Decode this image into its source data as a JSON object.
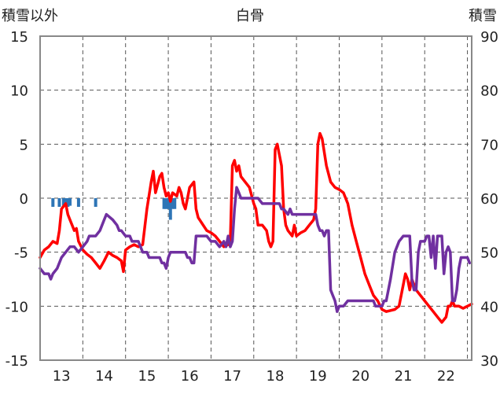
{
  "chart_data": {
    "type": "line",
    "title": "白骨",
    "ylabel_left": "積雪以外",
    "ylabel_right": "積雪",
    "x_ticks": [
      "13",
      "14",
      "15",
      "16",
      "17",
      "18",
      "19",
      "20",
      "21",
      "22"
    ],
    "x_range": [
      12.5,
      22.6
    ],
    "ylim_left": [
      -15,
      15
    ],
    "ylim_right": [
      30,
      90
    ],
    "yticks_left": [
      "15",
      "10",
      "5",
      "0",
      "-5",
      "-10",
      "-15"
    ],
    "yticks_right": [
      "90",
      "80",
      "70",
      "60",
      "50",
      "40",
      "30"
    ],
    "grid": "dashed-vertical",
    "colors": {
      "red": "#ff0000",
      "purple": "#7030a0",
      "blue": "#2e75b6"
    },
    "series": [
      {
        "name": "",
        "axis": "left",
        "color": "#ff0000",
        "points": [
          [
            12.5,
            -5.5
          ],
          [
            12.6,
            -4.8
          ],
          [
            12.7,
            -4.5
          ],
          [
            12.8,
            -4.0
          ],
          [
            12.9,
            -4.2
          ],
          [
            12.95,
            -3.0
          ],
          [
            13.0,
            -1.0
          ],
          [
            13.1,
            -0.5
          ],
          [
            13.15,
            -1.5
          ],
          [
            13.2,
            -2.0
          ],
          [
            13.3,
            -3.0
          ],
          [
            13.35,
            -2.8
          ],
          [
            13.4,
            -4.0
          ],
          [
            13.5,
            -4.8
          ],
          [
            13.6,
            -5.2
          ],
          [
            13.7,
            -5.5
          ],
          [
            13.8,
            -6.0
          ],
          [
            13.9,
            -6.5
          ],
          [
            14.0,
            -5.8
          ],
          [
            14.1,
            -5.0
          ],
          [
            14.2,
            -5.3
          ],
          [
            14.3,
            -5.5
          ],
          [
            14.4,
            -5.8
          ],
          [
            14.45,
            -6.8
          ],
          [
            14.5,
            -4.8
          ],
          [
            14.6,
            -4.5
          ],
          [
            14.7,
            -4.3
          ],
          [
            14.8,
            -4.5
          ],
          [
            14.9,
            -4.3
          ],
          [
            15.0,
            -1.0
          ],
          [
            15.1,
            1.5
          ],
          [
            15.15,
            2.5
          ],
          [
            15.2,
            0.5
          ],
          [
            15.3,
            2.0
          ],
          [
            15.35,
            2.3
          ],
          [
            15.4,
            1.0
          ],
          [
            15.45,
            0.2
          ],
          [
            15.5,
            0.5
          ],
          [
            15.55,
            -0.3
          ],
          [
            15.6,
            0.5
          ],
          [
            15.7,
            0.2
          ],
          [
            15.75,
            1.0
          ],
          [
            15.8,
            0.5
          ],
          [
            15.85,
            -0.5
          ],
          [
            15.9,
            -1.0
          ],
          [
            16.0,
            1.0
          ],
          [
            16.1,
            1.5
          ],
          [
            16.15,
            -1.0
          ],
          [
            16.2,
            -1.8
          ],
          [
            16.4,
            -3.0
          ],
          [
            16.5,
            -3.2
          ],
          [
            16.6,
            -3.5
          ],
          [
            16.7,
            -4.0
          ],
          [
            16.8,
            -4.5
          ],
          [
            16.9,
            -4.3
          ],
          [
            16.95,
            -4.0
          ],
          [
            17.0,
            3.0
          ],
          [
            17.05,
            3.5
          ],
          [
            17.1,
            2.5
          ],
          [
            17.15,
            3.0
          ],
          [
            17.2,
            2.0
          ],
          [
            17.3,
            1.5
          ],
          [
            17.4,
            1.0
          ],
          [
            17.5,
            -0.5
          ],
          [
            17.55,
            -1.0
          ],
          [
            17.6,
            -2.5
          ],
          [
            17.7,
            -2.5
          ],
          [
            17.8,
            -3.0
          ],
          [
            17.85,
            -4.0
          ],
          [
            17.9,
            -4.5
          ],
          [
            17.95,
            -4.0
          ],
          [
            18.0,
            4.5
          ],
          [
            18.05,
            5.0
          ],
          [
            18.1,
            4.0
          ],
          [
            18.15,
            3.0
          ],
          [
            18.2,
            -1.0
          ],
          [
            18.25,
            -2.5
          ],
          [
            18.3,
            -3.0
          ],
          [
            18.4,
            -3.5
          ],
          [
            18.45,
            -2.5
          ],
          [
            18.5,
            -3.5
          ],
          [
            18.6,
            -3.2
          ],
          [
            18.7,
            -3.0
          ],
          [
            18.8,
            -2.5
          ],
          [
            18.9,
            -2.0
          ],
          [
            18.95,
            -1.0
          ],
          [
            19.0,
            5.0
          ],
          [
            19.05,
            6.0
          ],
          [
            19.1,
            5.5
          ],
          [
            19.2,
            3.0
          ],
          [
            19.3,
            1.5
          ],
          [
            19.4,
            1.0
          ],
          [
            19.5,
            0.8
          ],
          [
            19.6,
            0.5
          ],
          [
            19.7,
            -0.5
          ],
          [
            19.8,
            -2.5
          ],
          [
            19.9,
            -4.0
          ],
          [
            20.0,
            -5.5
          ],
          [
            20.1,
            -7.0
          ],
          [
            20.2,
            -8.0
          ],
          [
            20.3,
            -9.0
          ],
          [
            20.4,
            -9.5
          ],
          [
            20.5,
            -10.3
          ],
          [
            20.6,
            -10.5
          ],
          [
            20.8,
            -10.3
          ],
          [
            20.9,
            -10.0
          ],
          [
            21.0,
            -8.0
          ],
          [
            21.05,
            -7.0
          ],
          [
            21.1,
            -7.5
          ],
          [
            21.15,
            -8.5
          ],
          [
            21.2,
            -7.5
          ],
          [
            21.3,
            -8.5
          ],
          [
            21.5,
            -9.5
          ],
          [
            21.6,
            -10.0
          ],
          [
            21.7,
            -10.5
          ],
          [
            21.8,
            -11.0
          ],
          [
            21.9,
            -11.5
          ],
          [
            22.0,
            -11.0
          ],
          [
            22.05,
            -10.0
          ],
          [
            22.1,
            -10.0
          ],
          [
            22.15,
            -9.5
          ],
          [
            22.2,
            -10.0
          ],
          [
            22.3,
            -10.0
          ],
          [
            22.4,
            -10.2
          ],
          [
            22.5,
            -10.0
          ],
          [
            22.6,
            -9.8
          ]
        ]
      },
      {
        "name": "",
        "axis": "left",
        "color": "#7030a0",
        "points": [
          [
            12.5,
            -6.5
          ],
          [
            12.6,
            -7.0
          ],
          [
            12.7,
            -7.0
          ],
          [
            12.75,
            -7.5
          ],
          [
            12.8,
            -7.0
          ],
          [
            12.9,
            -6.5
          ],
          [
            13.0,
            -5.5
          ],
          [
            13.1,
            -5.0
          ],
          [
            13.2,
            -4.5
          ],
          [
            13.3,
            -4.5
          ],
          [
            13.4,
            -5.0
          ],
          [
            13.5,
            -4.5
          ],
          [
            13.6,
            -4.0
          ],
          [
            13.65,
            -3.5
          ],
          [
            13.8,
            -3.5
          ],
          [
            13.9,
            -3.0
          ],
          [
            14.0,
            -2.0
          ],
          [
            14.05,
            -1.5
          ],
          [
            14.2,
            -2.0
          ],
          [
            14.3,
            -2.5
          ],
          [
            14.35,
            -3.0
          ],
          [
            14.4,
            -3.0
          ],
          [
            14.5,
            -3.5
          ],
          [
            14.6,
            -3.5
          ],
          [
            14.65,
            -4.0
          ],
          [
            14.8,
            -4.0
          ],
          [
            14.9,
            -5.0
          ],
          [
            15.0,
            -5.0
          ],
          [
            15.05,
            -5.5
          ],
          [
            15.2,
            -5.5
          ],
          [
            15.3,
            -5.5
          ],
          [
            15.35,
            -6.0
          ],
          [
            15.4,
            -6.0
          ],
          [
            15.45,
            -6.5
          ],
          [
            15.5,
            -5.5
          ],
          [
            15.55,
            -5.0
          ],
          [
            15.9,
            -5.0
          ],
          [
            15.95,
            -5.5
          ],
          [
            16.0,
            -5.5
          ],
          [
            16.05,
            -6.0
          ],
          [
            16.1,
            -6.0
          ],
          [
            16.15,
            -3.5
          ],
          [
            16.2,
            -3.5
          ],
          [
            16.4,
            -3.5
          ],
          [
            16.5,
            -4.0
          ],
          [
            16.6,
            -4.0
          ],
          [
            16.7,
            -4.5
          ],
          [
            16.8,
            -4.0
          ],
          [
            16.85,
            -4.5
          ],
          [
            16.9,
            -3.5
          ],
          [
            16.95,
            -4.5
          ],
          [
            17.0,
            -4.0
          ],
          [
            17.05,
            -1.0
          ],
          [
            17.1,
            1.0
          ],
          [
            17.15,
            0.5
          ],
          [
            17.2,
            0.0
          ],
          [
            17.5,
            0.0
          ],
          [
            17.6,
            0.0
          ],
          [
            17.7,
            -0.5
          ],
          [
            18.0,
            -0.5
          ],
          [
            18.05,
            -0.5
          ],
          [
            18.1,
            -0.5
          ],
          [
            18.15,
            -1.0
          ],
          [
            18.2,
            -1.0
          ],
          [
            18.3,
            -1.5
          ],
          [
            18.35,
            -1.0
          ],
          [
            18.4,
            -1.5
          ],
          [
            18.5,
            -1.5
          ],
          [
            18.95,
            -1.5
          ],
          [
            19.0,
            -2.5
          ],
          [
            19.05,
            -3.0
          ],
          [
            19.1,
            -3.0
          ],
          [
            19.15,
            -3.5
          ],
          [
            19.2,
            -3.0
          ],
          [
            19.25,
            -3.0
          ],
          [
            19.3,
            -8.5
          ],
          [
            19.35,
            -9.0
          ],
          [
            19.4,
            -9.5
          ],
          [
            19.45,
            -10.5
          ],
          [
            19.5,
            -10.0
          ],
          [
            19.6,
            -10.0
          ],
          [
            19.7,
            -9.5
          ],
          [
            20.0,
            -9.5
          ],
          [
            20.1,
            -9.5
          ],
          [
            20.2,
            -9.5
          ],
          [
            20.3,
            -9.5
          ],
          [
            20.35,
            -10.0
          ],
          [
            20.45,
            -10.0
          ],
          [
            20.5,
            -10.0
          ],
          [
            20.55,
            -9.5
          ],
          [
            20.6,
            -9.5
          ],
          [
            20.7,
            -7.5
          ],
          [
            20.8,
            -5.0
          ],
          [
            20.9,
            -4.0
          ],
          [
            21.0,
            -3.5
          ],
          [
            21.1,
            -3.5
          ],
          [
            21.15,
            -3.5
          ],
          [
            21.2,
            -7.5
          ],
          [
            21.25,
            -8.5
          ],
          [
            21.3,
            -8.5
          ],
          [
            21.35,
            -5.0
          ],
          [
            21.4,
            -4.0
          ],
          [
            21.5,
            -4.0
          ],
          [
            21.55,
            -3.5
          ],
          [
            21.6,
            -3.5
          ],
          [
            21.65,
            -5.5
          ],
          [
            21.7,
            -3.5
          ],
          [
            21.75,
            -6.5
          ],
          [
            21.8,
            -3.5
          ],
          [
            21.85,
            -3.5
          ],
          [
            21.9,
            -3.5
          ],
          [
            21.95,
            -7.0
          ],
          [
            22.0,
            -5.0
          ],
          [
            22.05,
            -4.5
          ],
          [
            22.1,
            -5.0
          ],
          [
            22.15,
            -9.5
          ],
          [
            22.2,
            -9.5
          ],
          [
            22.25,
            -8.5
          ],
          [
            22.3,
            -6.5
          ],
          [
            22.35,
            -5.5
          ],
          [
            22.4,
            -5.5
          ],
          [
            22.45,
            -5.5
          ],
          [
            22.5,
            -5.5
          ],
          [
            22.55,
            -6.0
          ]
        ]
      },
      {
        "name": "",
        "type": "bar",
        "axis": "left",
        "color": "#2e75b6",
        "points": [
          [
            12.8,
            -0.8
          ],
          [
            12.95,
            -0.8
          ],
          [
            13.05,
            -0.7
          ],
          [
            13.1,
            -0.8
          ],
          [
            13.15,
            -0.8
          ],
          [
            13.2,
            -0.7
          ],
          [
            13.4,
            -0.8
          ],
          [
            13.8,
            -0.8
          ],
          [
            15.4,
            -1.0
          ],
          [
            15.45,
            -1.0
          ],
          [
            15.5,
            -1.0
          ],
          [
            15.55,
            -2.0
          ],
          [
            15.6,
            -1.0
          ],
          [
            15.65,
            -1.0
          ]
        ]
      }
    ]
  }
}
